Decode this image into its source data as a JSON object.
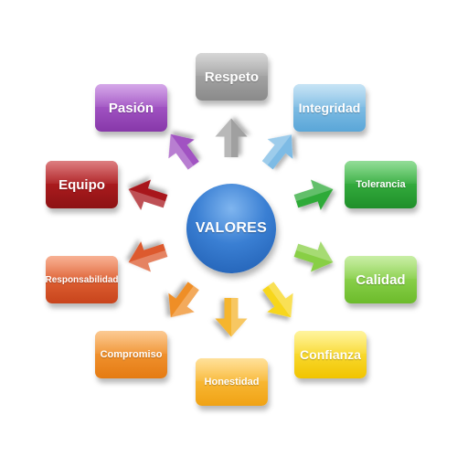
{
  "center": {
    "label": "VALORES",
    "color": "#3a7fd3"
  },
  "values": [
    {
      "id": "respeto",
      "label": "Respeto",
      "color": "#a0a0a0"
    },
    {
      "id": "integridad",
      "label": "Integridad",
      "color": "#7dbbe5"
    },
    {
      "id": "tolerancia",
      "label": "Tolerancia",
      "color": "#2faa38"
    },
    {
      "id": "calidad",
      "label": "Calidad",
      "color": "#88cf45"
    },
    {
      "id": "confianza",
      "label": "Confianza",
      "color": "#f7d61f"
    },
    {
      "id": "honestidad",
      "label": "Honestidad",
      "color": "#f5b52e"
    },
    {
      "id": "compromiso",
      "label": "Compromiso",
      "color": "#ef8e27"
    },
    {
      "id": "responsabilidad",
      "label": "Responsabilidad",
      "color": "#dd5a2e"
    },
    {
      "id": "equipo",
      "label": "Equipo",
      "color": "#a8191c"
    },
    {
      "id": "pasion",
      "label": "Pasión",
      "color": "#a152c2"
    }
  ],
  "arrow_icon": "thick-arrow-icon"
}
